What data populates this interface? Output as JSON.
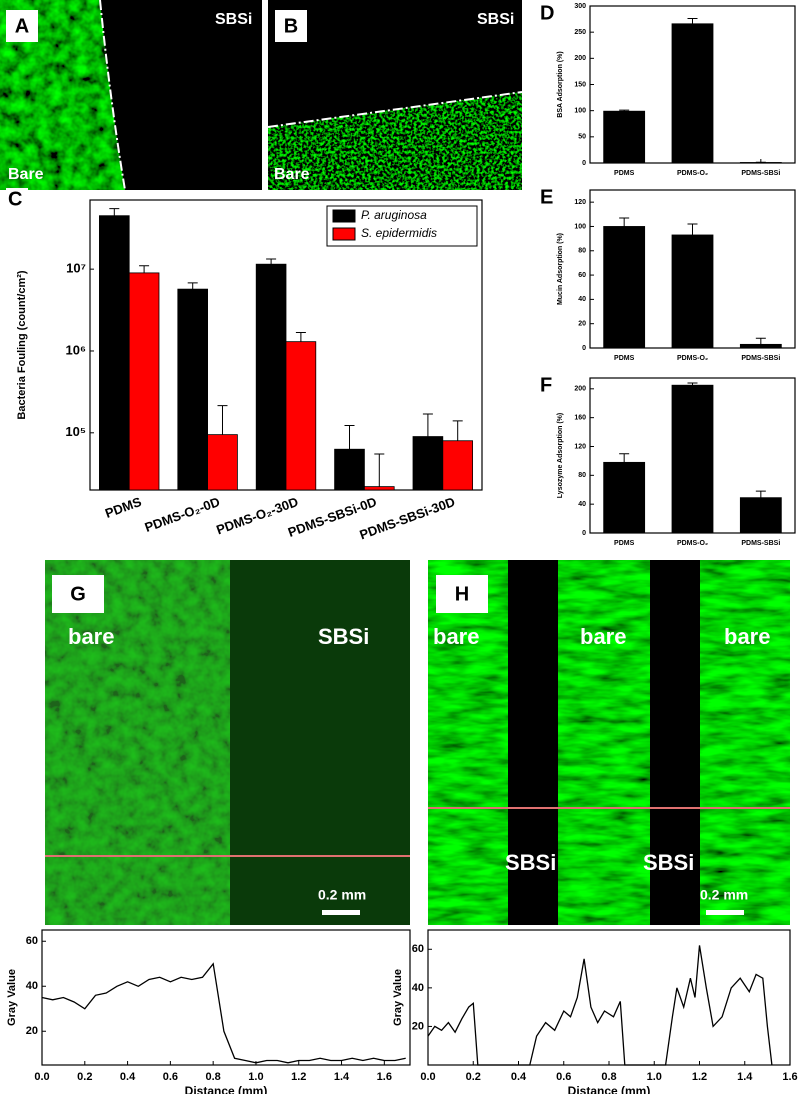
{
  "images": [
    {
      "letter": "A",
      "labels": [
        "SBSi",
        "Bare"
      ]
    },
    {
      "letter": "B",
      "labels": [
        "SBSi",
        "Bare"
      ]
    },
    {
      "letter": "G",
      "labels": [
        "bare",
        "SBSi",
        "0.2 mm"
      ]
    },
    {
      "letter": "H",
      "labels": [
        "bare",
        "bare",
        "bare",
        "SBSi",
        "SBSi",
        "0.2 mm"
      ]
    }
  ],
  "chart_data": [
    {
      "type": "bar",
      "panel": "C",
      "ylabel": "Bacteria Fouling (count/cm²)",
      "log_scale": true,
      "legend": "upper right",
      "categories": [
        "PDMS",
        "PDMS-O₂-0D",
        "PDMS-O₂-30D",
        "PDMS-SBSi-0D",
        "PDMS-SBSi-30D"
      ],
      "series": [
        {
          "name": "P. aruginosa",
          "color": "#000000",
          "values": [
            45000000,
            5700000,
            11500000,
            63000,
            90000
          ],
          "errors": [
            10000000,
            1100000,
            1800000,
            60000,
            80000
          ]
        },
        {
          "name": "S. epidermidis",
          "color": "#ff0000",
          "values": [
            9000000,
            95000,
            1300000,
            22000,
            80000
          ],
          "errors": [
            2000000,
            120000,
            380000,
            33000,
            60000
          ]
        }
      ],
      "ylim": [
        20000,
        70000000
      ],
      "yticks": [
        {
          "value": 100000,
          "label": "10⁵"
        },
        {
          "value": 1000000,
          "label": "10⁶"
        },
        {
          "value": 10000000,
          "label": "10⁷"
        }
      ]
    },
    {
      "type": "bar",
      "panel": "D",
      "ylabel": "BSA Adsorption (%)",
      "categories": [
        "PDMS",
        "PDMS-O₂",
        "PDMS-SBSi"
      ],
      "values": [
        99,
        266,
        1
      ],
      "errors": [
        2,
        10,
        0.5
      ],
      "color": "#000000",
      "ylim": [
        0,
        300
      ],
      "yticks": [
        0,
        50,
        100,
        150,
        200,
        250,
        300
      ]
    },
    {
      "type": "bar",
      "panel": "E",
      "ylabel": "Mucin Adsorption (%)",
      "categories": [
        "PDMS",
        "PDMS-O₂",
        "PDMS-SBSi"
      ],
      "values": [
        100,
        93,
        3
      ],
      "errors": [
        7,
        9,
        5
      ],
      "color": "#000000",
      "ylim": [
        0,
        130
      ],
      "yticks": [
        0,
        20,
        40,
        60,
        80,
        100,
        120
      ]
    },
    {
      "type": "bar",
      "panel": "F",
      "ylabel": "Lysozyme Adsorption (%)",
      "categories": [
        "PDMS",
        "PDMS-O₂",
        "PDMS-SBSi"
      ],
      "values": [
        98,
        205,
        49
      ],
      "errors": [
        12,
        3,
        9
      ],
      "color": "#000000",
      "ylim": [
        0,
        215
      ],
      "yticks": [
        0,
        40,
        80,
        120,
        160,
        200
      ]
    },
    {
      "type": "line",
      "xlabel": "Distance (mm)",
      "ylabel": "Gray Value",
      "color": "#000000",
      "x": [
        0,
        0.05,
        0.1,
        0.15,
        0.2,
        0.25,
        0.3,
        0.35,
        0.4,
        0.45,
        0.5,
        0.55,
        0.6,
        0.65,
        0.7,
        0.75,
        0.8,
        0.85,
        0.9,
        0.95,
        1.0,
        1.05,
        1.1,
        1.15,
        1.2,
        1.25,
        1.3,
        1.35,
        1.4,
        1.45,
        1.5,
        1.55,
        1.6,
        1.65,
        1.7
      ],
      "values": [
        35,
        34,
        35,
        33,
        30,
        36,
        37,
        40,
        42,
        40,
        43,
        44,
        42,
        44,
        43,
        44,
        50,
        20,
        8,
        7,
        6,
        7,
        7,
        6,
        7,
        7,
        8,
        7,
        7,
        8,
        7,
        8,
        7,
        7,
        8
      ],
      "xlim": [
        0,
        1.72
      ],
      "xticks": [
        {
          "value": 0,
          "label": "0.0"
        },
        0.2,
        0.4,
        0.6,
        0.8,
        {
          "value": 1,
          "label": "1.0"
        },
        1.2,
        1.4,
        1.6
      ],
      "ylim": [
        5,
        65
      ],
      "yticks": [
        20,
        40,
        60
      ]
    },
    {
      "type": "line",
      "xlabel": "Distance (mm)",
      "ylabel": "Gray Value",
      "color": "#000000",
      "x": [
        0,
        0.03,
        0.06,
        0.09,
        0.12,
        0.15,
        0.18,
        0.2,
        0.22,
        0.45,
        0.48,
        0.52,
        0.56,
        0.6,
        0.63,
        0.66,
        0.69,
        0.72,
        0.75,
        0.78,
        0.82,
        0.85,
        0.87,
        1.05,
        1.08,
        1.1,
        1.13,
        1.16,
        1.18,
        1.2,
        1.23,
        1.26,
        1.3,
        1.34,
        1.38,
        1.42,
        1.45,
        1.48,
        1.5,
        1.52
      ],
      "values": [
        15,
        20,
        18,
        22,
        17,
        24,
        30,
        32,
        0,
        0,
        15,
        22,
        18,
        28,
        25,
        35,
        55,
        30,
        22,
        28,
        25,
        33,
        0,
        0,
        25,
        40,
        30,
        45,
        35,
        62,
        40,
        20,
        25,
        40,
        45,
        38,
        47,
        45,
        20,
        0
      ],
      "xlim": [
        0,
        1.6
      ],
      "xticks": [
        {
          "value": 0,
          "label": "0.0"
        },
        0.2,
        0.4,
        0.6,
        0.8,
        {
          "value": 1,
          "label": "1.0"
        },
        1.2,
        1.4,
        1.6
      ],
      "ylim": [
        0,
        70
      ],
      "yticks": [
        20,
        40,
        60
      ]
    }
  ]
}
